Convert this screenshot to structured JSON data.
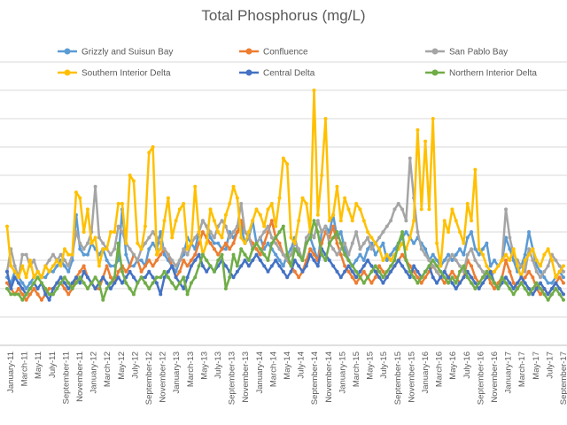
{
  "chart_data": {
    "type": "line",
    "title": "Total Phosphorus (mg/L)",
    "xlabel": "",
    "ylabel": "",
    "ylim": [
      0,
      0.5
    ],
    "y_gridlines": [
      0.05,
      0.1,
      0.15,
      0.2,
      0.25,
      0.3,
      0.35,
      0.4,
      0.45,
      0.5
    ],
    "y_tick_labels_shown": false,
    "x_tick_labels": [
      "January-11",
      "March-11",
      "May-11",
      "July-11",
      "September-11",
      "November-11",
      "January-12",
      "March-12",
      "May-12",
      "July-12",
      "September-12",
      "November-12",
      "January-13",
      "March-13",
      "May-13",
      "July-13",
      "September-13",
      "November-13",
      "January-14",
      "March-14",
      "May-14",
      "July-14",
      "September-14",
      "November-14",
      "January-15",
      "March-15",
      "May-15",
      "July-15",
      "September-15",
      "November-15",
      "January-16",
      "March-16",
      "May-16",
      "July-16",
      "September-16",
      "November-16",
      "January-17",
      "March-17",
      "May-17",
      "July-17",
      "September-17"
    ],
    "legend_position": "top",
    "grid": true,
    "series": [
      {
        "name": "Grizzly and Suisun Bay",
        "color": "#5B9BD5",
        "values": [
          0.12,
          0.11,
          0.13,
          0.12,
          0.11,
          0.1,
          0.11,
          0.12,
          0.13,
          0.12,
          0.12,
          0.13,
          0.13,
          0.14,
          0.15,
          0.14,
          0.13,
          0.15,
          0.23,
          0.17,
          0.16,
          0.16,
          0.18,
          0.17,
          0.16,
          0.17,
          0.15,
          0.14,
          0.14,
          0.15,
          0.24,
          0.16,
          0.14,
          0.14,
          0.15,
          0.15,
          0.14,
          0.17,
          0.18,
          0.17,
          0.2,
          0.16,
          0.15,
          0.14,
          0.13,
          0.15,
          0.16,
          0.19,
          0.18,
          0.17,
          0.2,
          0.22,
          0.21,
          0.19,
          0.18,
          0.18,
          0.17,
          0.17,
          0.2,
          0.19,
          0.2,
          0.21,
          0.18,
          0.19,
          0.22,
          0.18,
          0.19,
          0.17,
          0.18,
          0.17,
          0.16,
          0.15,
          0.14,
          0.16,
          0.17,
          0.19,
          0.16,
          0.15,
          0.18,
          0.19,
          0.17,
          0.15,
          0.2,
          0.21,
          0.2,
          0.23,
          0.19,
          0.2,
          0.17,
          0.15,
          0.14,
          0.15,
          0.16,
          0.15,
          0.17,
          0.18,
          0.16,
          0.17,
          0.18,
          0.15,
          0.16,
          0.17,
          0.18,
          0.19,
          0.2,
          0.19,
          0.18,
          0.19,
          0.18,
          0.17,
          0.15,
          0.16,
          0.15,
          0.14,
          0.15,
          0.16,
          0.15,
          0.16,
          0.17,
          0.16,
          0.19,
          0.2,
          0.17,
          0.16,
          0.17,
          0.18,
          0.14,
          0.15,
          0.14,
          0.15,
          0.19,
          0.17,
          0.15,
          0.13,
          0.14,
          0.16,
          0.2,
          0.17,
          0.14,
          0.13,
          0.12,
          0.11,
          0.11,
          0.12,
          0.13,
          0.12
        ]
      },
      {
        "name": "Confluence",
        "color": "#ED7D31",
        "values": [
          0.11,
          0.1,
          0.09,
          0.1,
          0.09,
          0.08,
          0.09,
          0.1,
          0.09,
          0.08,
          0.09,
          0.1,
          0.1,
          0.11,
          0.11,
          0.1,
          0.09,
          0.1,
          0.12,
          0.13,
          0.14,
          0.12,
          0.11,
          0.1,
          0.1,
          0.12,
          0.14,
          0.12,
          0.11,
          0.13,
          0.14,
          0.13,
          0.14,
          0.16,
          0.15,
          0.13,
          0.14,
          0.15,
          0.14,
          0.15,
          0.16,
          0.17,
          0.16,
          0.14,
          0.12,
          0.13,
          0.15,
          0.14,
          0.15,
          0.16,
          0.18,
          0.2,
          0.19,
          0.18,
          0.17,
          0.16,
          0.17,
          0.18,
          0.17,
          0.18,
          0.2,
          0.22,
          0.2,
          0.19,
          0.18,
          0.17,
          0.16,
          0.18,
          0.2,
          0.22,
          0.19,
          0.18,
          0.16,
          0.15,
          0.14,
          0.13,
          0.12,
          0.13,
          0.15,
          0.17,
          0.16,
          0.15,
          0.18,
          0.2,
          0.19,
          0.21,
          0.18,
          0.16,
          0.14,
          0.13,
          0.12,
          0.11,
          0.12,
          0.13,
          0.12,
          0.11,
          0.12,
          0.14,
          0.13,
          0.12,
          0.13,
          0.14,
          0.15,
          0.16,
          0.15,
          0.14,
          0.13,
          0.12,
          0.11,
          0.12,
          0.13,
          0.14,
          0.13,
          0.12,
          0.11,
          0.12,
          0.13,
          0.12,
          0.11,
          0.12,
          0.15,
          0.14,
          0.12,
          0.11,
          0.12,
          0.13,
          0.11,
          0.1,
          0.11,
          0.12,
          0.15,
          0.13,
          0.11,
          0.1,
          0.11,
          0.12,
          0.13,
          0.12,
          0.1,
          0.09,
          0.1,
          0.09,
          0.1,
          0.11,
          0.12,
          0.11
        ]
      },
      {
        "name": "San Pablo Bay",
        "color": "#A5A5A5",
        "values": [
          0.13,
          0.17,
          0.14,
          0.12,
          0.16,
          0.16,
          0.14,
          0.15,
          0.13,
          0.12,
          0.14,
          0.15,
          0.16,
          0.15,
          0.16,
          0.15,
          0.14,
          0.16,
          0.2,
          0.18,
          0.17,
          0.18,
          0.2,
          0.28,
          0.19,
          0.18,
          0.17,
          0.16,
          0.17,
          0.21,
          0.2,
          0.18,
          0.17,
          0.16,
          0.15,
          0.17,
          0.18,
          0.19,
          0.2,
          0.19,
          0.18,
          0.17,
          0.16,
          0.15,
          0.14,
          0.15,
          0.17,
          0.16,
          0.18,
          0.19,
          0.2,
          0.22,
          0.21,
          0.2,
          0.19,
          0.21,
          0.22,
          0.21,
          0.19,
          0.2,
          0.21,
          0.25,
          0.2,
          0.19,
          0.17,
          0.18,
          0.19,
          0.2,
          0.21,
          0.19,
          0.18,
          0.17,
          0.16,
          0.15,
          0.16,
          0.18,
          0.17,
          0.15,
          0.19,
          0.2,
          0.19,
          0.22,
          0.2,
          0.21,
          0.18,
          0.17,
          0.16,
          0.17,
          0.18,
          0.16,
          0.18,
          0.2,
          0.17,
          0.18,
          0.19,
          0.17,
          0.18,
          0.19,
          0.2,
          0.21,
          0.22,
          0.24,
          0.25,
          0.24,
          0.22,
          0.33,
          0.26,
          0.2,
          0.17,
          0.16,
          0.15,
          0.14,
          0.13,
          0.12,
          0.13,
          0.15,
          0.16,
          0.15,
          0.14,
          0.13,
          0.16,
          0.17,
          0.15,
          0.14,
          0.13,
          0.12,
          0.12,
          0.13,
          0.14,
          0.15,
          0.24,
          0.19,
          0.16,
          0.15,
          0.14,
          0.13,
          0.17,
          0.15,
          0.13,
          0.12,
          0.13,
          0.14,
          0.16,
          0.15,
          0.14,
          0.13
        ]
      },
      {
        "name": "Southern Interior Delta",
        "color": "#FFC000",
        "values": [
          0.21,
          0.14,
          0.13,
          0.12,
          0.14,
          0.12,
          0.15,
          0.12,
          0.13,
          0.12,
          0.14,
          0.13,
          0.14,
          0.15,
          0.14,
          0.17,
          0.16,
          0.16,
          0.27,
          0.26,
          0.2,
          0.24,
          0.18,
          0.19,
          0.14,
          0.17,
          0.17,
          0.2,
          0.2,
          0.25,
          0.25,
          0.18,
          0.3,
          0.29,
          0.18,
          0.17,
          0.21,
          0.34,
          0.35,
          0.16,
          0.17,
          0.22,
          0.26,
          0.19,
          0.22,
          0.24,
          0.25,
          0.17,
          0.18,
          0.28,
          0.2,
          0.16,
          0.18,
          0.24,
          0.22,
          0.2,
          0.19,
          0.23,
          0.25,
          0.28,
          0.26,
          0.19,
          0.18,
          0.2,
          0.22,
          0.24,
          0.23,
          0.21,
          0.24,
          0.25,
          0.21,
          0.26,
          0.33,
          0.32,
          0.19,
          0.18,
          0.22,
          0.26,
          0.25,
          0.2,
          0.45,
          0.23,
          0.3,
          0.4,
          0.22,
          0.23,
          0.28,
          0.22,
          0.26,
          0.24,
          0.22,
          0.25,
          0.24,
          0.22,
          0.2,
          0.19,
          0.18,
          0.17,
          0.15,
          0.16,
          0.15,
          0.16,
          0.17,
          0.18,
          0.17,
          0.19,
          0.22,
          0.38,
          0.24,
          0.36,
          0.24,
          0.4,
          0.18,
          0.14,
          0.22,
          0.2,
          0.24,
          0.22,
          0.2,
          0.18,
          0.25,
          0.22,
          0.31,
          0.17,
          0.16,
          0.14,
          0.13,
          0.13,
          0.14,
          0.15,
          0.16,
          0.15,
          0.17,
          0.14,
          0.12,
          0.15,
          0.16,
          0.17,
          0.15,
          0.14,
          0.16,
          0.17,
          0.15,
          0.12,
          0.13,
          0.14
        ]
      },
      {
        "name": "Central Delta",
        "color": "#4472C4",
        "values": [
          0.13,
          0.1,
          0.12,
          0.11,
          0.1,
          0.09,
          0.1,
          0.11,
          0.1,
          0.11,
          0.09,
          0.08,
          0.1,
          0.11,
          0.12,
          0.11,
          0.1,
          0.11,
          0.12,
          0.11,
          0.13,
          0.12,
          0.11,
          0.1,
          0.11,
          0.12,
          0.11,
          0.1,
          0.11,
          0.12,
          0.11,
          0.12,
          0.13,
          0.12,
          0.11,
          0.12,
          0.12,
          0.13,
          0.12,
          0.11,
          0.09,
          0.12,
          0.13,
          0.14,
          0.12,
          0.11,
          0.1,
          0.12,
          0.14,
          0.15,
          0.16,
          0.14,
          0.13,
          0.14,
          0.13,
          0.14,
          0.15,
          0.14,
          0.13,
          0.12,
          0.13,
          0.14,
          0.15,
          0.14,
          0.15,
          0.16,
          0.15,
          0.14,
          0.13,
          0.14,
          0.15,
          0.14,
          0.13,
          0.12,
          0.13,
          0.15,
          0.14,
          0.13,
          0.14,
          0.16,
          0.15,
          0.14,
          0.17,
          0.16,
          0.15,
          0.14,
          0.13,
          0.12,
          0.13,
          0.14,
          0.13,
          0.12,
          0.13,
          0.14,
          0.15,
          0.14,
          0.13,
          0.12,
          0.11,
          0.12,
          0.13,
          0.14,
          0.15,
          0.14,
          0.13,
          0.12,
          0.14,
          0.13,
          0.12,
          0.13,
          0.14,
          0.12,
          0.11,
          0.12,
          0.13,
          0.12,
          0.11,
          0.1,
          0.11,
          0.12,
          0.13,
          0.12,
          0.11,
          0.1,
          0.11,
          0.12,
          0.13,
          0.11,
          0.1,
          0.11,
          0.12,
          0.11,
          0.1,
          0.11,
          0.12,
          0.11,
          0.1,
          0.09,
          0.1,
          0.11,
          0.1,
          0.09,
          0.1,
          0.11,
          0.1,
          0.09
        ]
      },
      {
        "name": "Northern Interior Delta",
        "color": "#70AD47",
        "values": [
          0.1,
          0.09,
          0.09,
          0.09,
          0.08,
          0.09,
          0.1,
          0.11,
          0.12,
          0.11,
          0.1,
          0.09,
          0.09,
          0.1,
          0.11,
          0.12,
          0.11,
          0.1,
          0.11,
          0.12,
          0.11,
          0.1,
          0.11,
          0.12,
          0.11,
          0.08,
          0.1,
          0.11,
          0.12,
          0.18,
          0.13,
          0.11,
          0.1,
          0.09,
          0.11,
          0.12,
          0.11,
          0.1,
          0.11,
          0.12,
          0.12,
          0.13,
          0.12,
          0.11,
          0.1,
          0.11,
          0.12,
          0.09,
          0.11,
          0.12,
          0.14,
          0.16,
          0.15,
          0.14,
          0.13,
          0.15,
          0.16,
          0.1,
          0.12,
          0.16,
          0.14,
          0.17,
          0.16,
          0.15,
          0.17,
          0.18,
          0.17,
          0.16,
          0.15,
          0.18,
          0.19,
          0.2,
          0.21,
          0.16,
          0.14,
          0.17,
          0.16,
          0.15,
          0.18,
          0.19,
          0.22,
          0.2,
          0.16,
          0.15,
          0.18,
          0.19,
          0.2,
          0.18,
          0.16,
          0.15,
          0.14,
          0.13,
          0.12,
          0.11,
          0.12,
          0.13,
          0.14,
          0.13,
          0.12,
          0.13,
          0.14,
          0.15,
          0.18,
          0.2,
          0.15,
          0.13,
          0.12,
          0.11,
          0.12,
          0.13,
          0.14,
          0.15,
          0.14,
          0.13,
          0.12,
          0.11,
          0.12,
          0.11,
          0.13,
          0.14,
          0.12,
          0.11,
          0.1,
          0.11,
          0.12,
          0.13,
          0.12,
          0.11,
          0.1,
          0.12,
          0.11,
          0.1,
          0.09,
          0.1,
          0.11,
          0.1,
          0.09,
          0.1,
          0.11,
          0.1,
          0.09,
          0.08,
          0.09,
          0.1,
          0.09,
          0.08
        ]
      }
    ]
  }
}
